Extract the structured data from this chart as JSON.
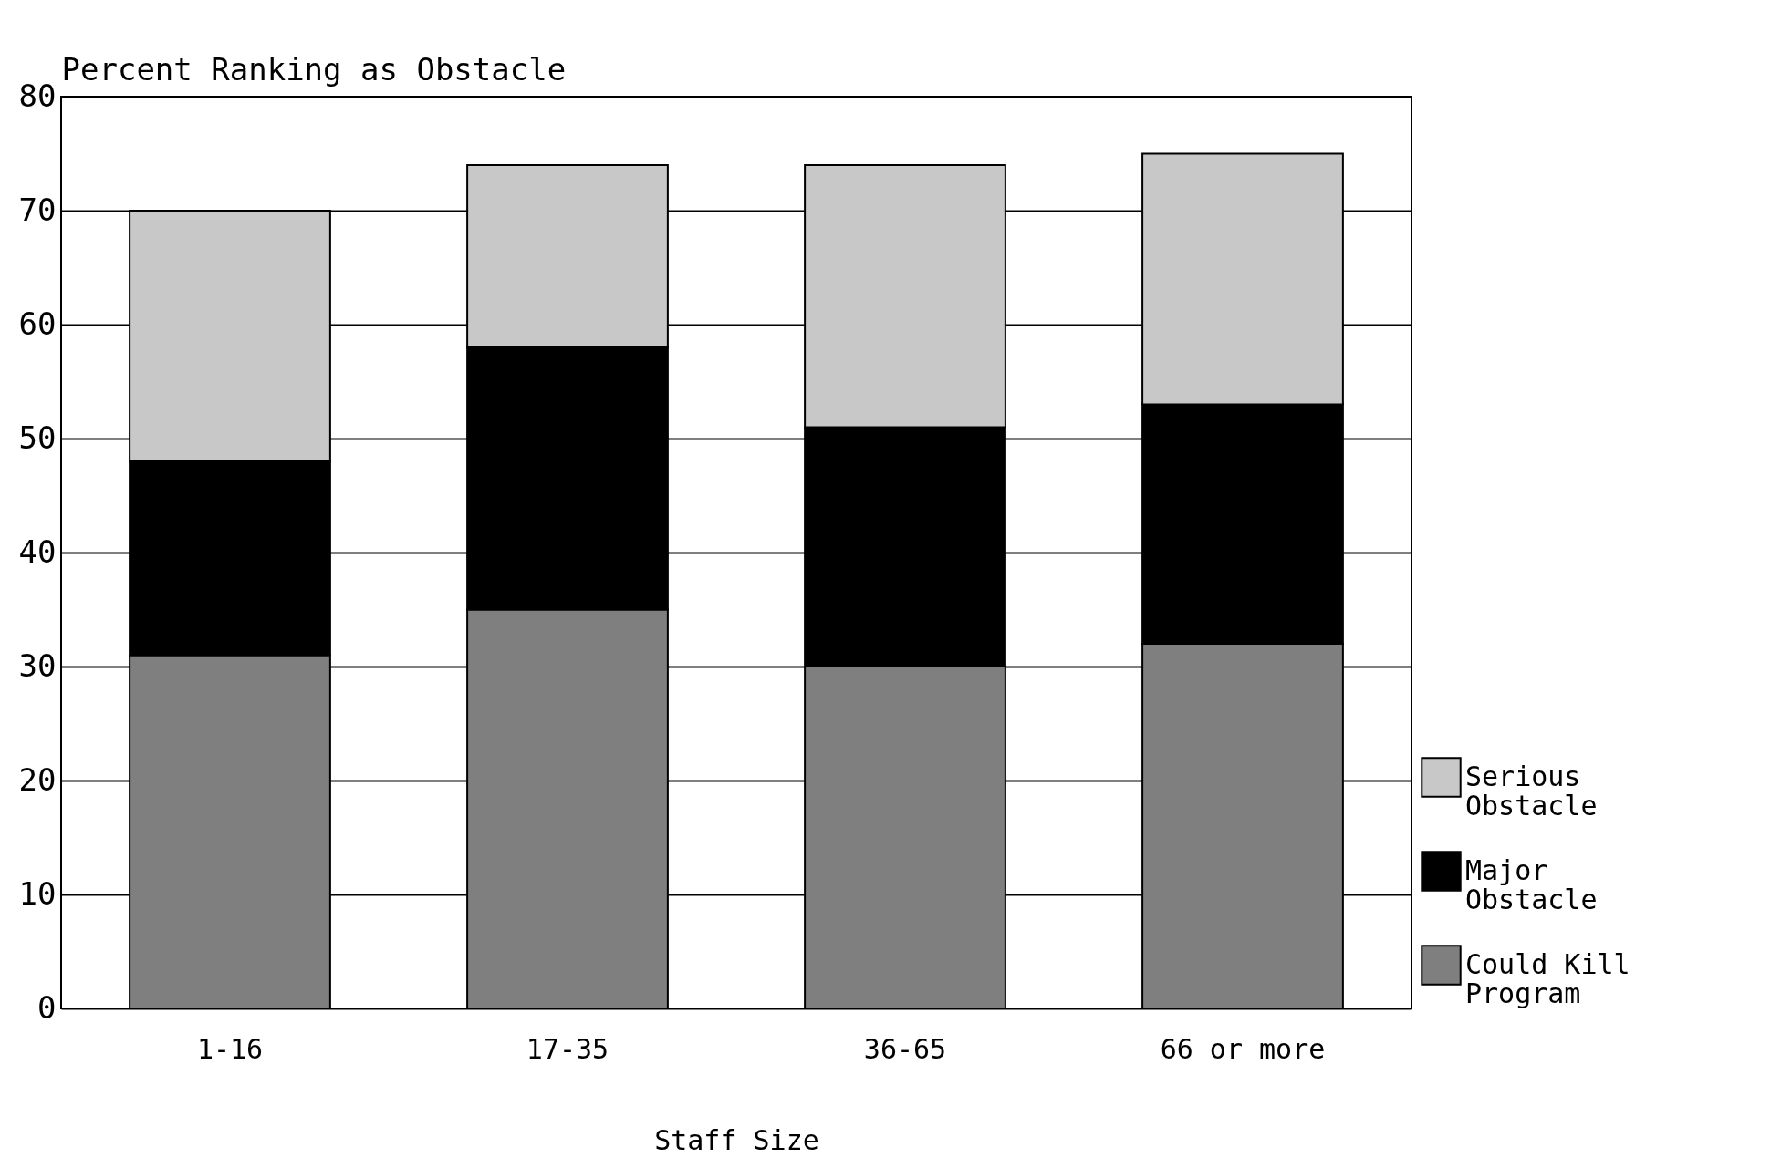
{
  "chart_data": {
    "type": "bar",
    "stacked": true,
    "ylabel": "Percent Ranking as Obstacle",
    "xlabel": "Staff Size",
    "categories": [
      "1-16",
      "17-35",
      "36-65",
      "66 or more"
    ],
    "series": [
      {
        "name": "Could Kill Program",
        "color": "#7f7f7f",
        "values": [
          31,
          35,
          30,
          32
        ]
      },
      {
        "name": "Major Obstacle",
        "color": "#000000",
        "values": [
          17,
          23,
          21,
          21
        ]
      },
      {
        "name": "Serious Obstacle",
        "color": "#c8c8c8",
        "values": [
          22,
          16,
          23,
          22
        ]
      }
    ],
    "ylim": [
      0,
      80
    ],
    "yticks": [
      0,
      10,
      20,
      30,
      40,
      50,
      60,
      70,
      80
    ],
    "grid": "y",
    "legend": "right"
  }
}
